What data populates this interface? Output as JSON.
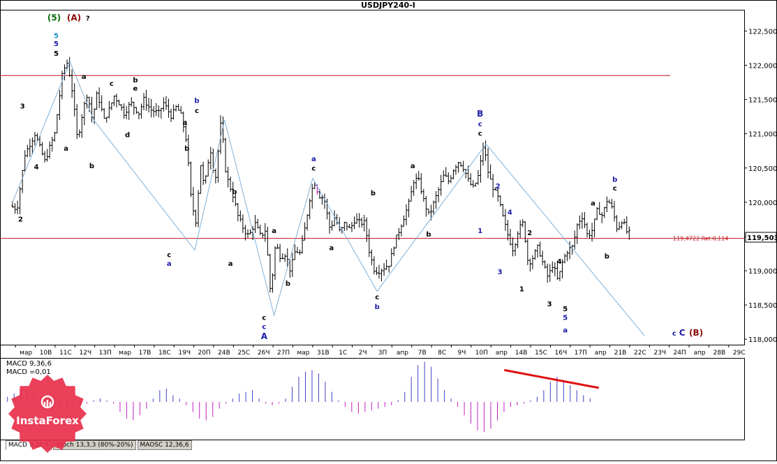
{
  "chart_data": {
    "type": "candlestick",
    "title": "USDJPY240-I",
    "price_ticks": [
      "122,500",
      "122,000",
      "121,500",
      "121,000",
      "120,500",
      "120,000",
      "119,500",
      "119,000",
      "118,500",
      "118,000"
    ],
    "price_tick_values": [
      122.5,
      122.0,
      121.5,
      121.0,
      120.5,
      120.0,
      119.5,
      119.0,
      118.5,
      118.0
    ],
    "ylim": [
      117.92,
      122.8
    ],
    "current_price": "119,503",
    "horizontal_lines": [
      {
        "price": 121.85,
        "label": ""
      },
      {
        "price": 119.4722,
        "label": "119,4722 Ret 0,114"
      }
    ],
    "time_labels": [
      "мар",
      "10В",
      "11С",
      "12Ч",
      "13П",
      "мар",
      "17В",
      "18С",
      "19Ч",
      "20П",
      "24В",
      "25С",
      "26Ч",
      "27П",
      "мар",
      "31В",
      "1С",
      "2Ч",
      "3П",
      "апр",
      "7В",
      "8С",
      "9Ч",
      "10П",
      "апр",
      "14В",
      "15С",
      "16Ч",
      "17П",
      "апр",
      "21В",
      "22С",
      "23Ч",
      "24П",
      "апр",
      "28В",
      "29С"
    ],
    "price_path": [
      [
        0,
        119.95
      ],
      [
        0.7,
        119.9
      ],
      [
        1.5,
        120.7
      ],
      [
        2.5,
        121.0
      ],
      [
        3.5,
        120.6
      ],
      [
        4.5,
        121.0
      ],
      [
        5.3,
        121.9
      ],
      [
        5.8,
        122.05
      ],
      [
        6.3,
        121.6
      ],
      [
        6.8,
        120.9
      ],
      [
        7.3,
        121.3
      ],
      [
        7.8,
        121.6
      ],
      [
        8.3,
        121.2
      ],
      [
        8.8,
        121.6
      ],
      [
        9.5,
        121.2
      ],
      [
        10,
        121.35
      ],
      [
        10.5,
        121.55
      ],
      [
        11,
        121.45
      ],
      [
        11.5,
        121.3
      ],
      [
        12.2,
        121.45
      ],
      [
        13,
        121.3
      ],
      [
        13.5,
        121.5
      ],
      [
        14.2,
        121.35
      ],
      [
        15,
        121.3
      ],
      [
        15.5,
        121.45
      ],
      [
        16.3,
        121.25
      ],
      [
        16.8,
        121.4
      ],
      [
        17.3,
        121.25
      ],
      [
        17.8,
        120.9
      ],
      [
        18.3,
        120.0
      ],
      [
        18.8,
        119.7
      ],
      [
        19.2,
        120.6
      ],
      [
        19.6,
        120.2
      ],
      [
        20.2,
        120.8
      ],
      [
        20.7,
        120.3
      ],
      [
        21.3,
        121.2
      ],
      [
        21.8,
        120.4
      ],
      [
        22.5,
        120.1
      ],
      [
        23.0,
        119.8
      ],
      [
        23.6,
        119.6
      ],
      [
        24.1,
        119.5
      ],
      [
        24.7,
        119.7
      ],
      [
        25.3,
        119.5
      ],
      [
        25.8,
        119.6
      ],
      [
        26.3,
        118.65
      ],
      [
        26.8,
        119.4
      ],
      [
        27.3,
        119.2
      ],
      [
        27.8,
        119.25
      ],
      [
        28.3,
        119.0
      ],
      [
        28.8,
        119.3
      ],
      [
        29.3,
        119.25
      ],
      [
        29.8,
        119.65
      ],
      [
        30.3,
        120.1
      ],
      [
        30.7,
        120.3
      ],
      [
        31.2,
        120.1
      ],
      [
        31.7,
        120.05
      ],
      [
        32.3,
        119.6
      ],
      [
        32.8,
        119.8
      ],
      [
        33.3,
        119.55
      ],
      [
        33.8,
        119.7
      ],
      [
        34.3,
        119.6
      ],
      [
        34.8,
        119.75
      ],
      [
        35.3,
        119.7
      ],
      [
        35.8,
        119.7
      ],
      [
        36.3,
        119.25
      ],
      [
        36.8,
        119.0
      ],
      [
        37.3,
        119.0
      ],
      [
        37.8,
        119.05
      ],
      [
        38.3,
        119.1
      ],
      [
        38.8,
        119.4
      ],
      [
        39.3,
        119.6
      ],
      [
        39.8,
        119.8
      ],
      [
        40.3,
        120.0
      ],
      [
        40.8,
        120.35
      ],
      [
        41.3,
        120.3
      ],
      [
        41.8,
        120.0
      ],
      [
        42.3,
        119.8
      ],
      [
        42.8,
        120.0
      ],
      [
        43.3,
        120.2
      ],
      [
        43.8,
        120.4
      ],
      [
        44.3,
        120.3
      ],
      [
        44.8,
        120.5
      ],
      [
        45.3,
        120.6
      ],
      [
        45.8,
        120.5
      ],
      [
        46.3,
        120.3
      ],
      [
        46.8,
        120.2
      ],
      [
        47.3,
        120.4
      ],
      [
        47.8,
        120.85
      ],
      [
        48.3,
        120.4
      ],
      [
        48.8,
        120.2
      ],
      [
        49.3,
        120.05
      ],
      [
        49.8,
        119.75
      ],
      [
        50.3,
        119.5
      ],
      [
        50.8,
        119.3
      ],
      [
        51.3,
        119.6
      ],
      [
        51.8,
        119.7
      ],
      [
        52.3,
        119.1
      ],
      [
        52.8,
        119.2
      ],
      [
        53.3,
        119.35
      ],
      [
        53.8,
        119.1
      ],
      [
        54.3,
        118.9
      ],
      [
        54.8,
        119.1
      ],
      [
        55.3,
        118.85
      ],
      [
        55.8,
        119.15
      ],
      [
        56.3,
        119.3
      ],
      [
        56.8,
        119.35
      ],
      [
        57.3,
        119.7
      ],
      [
        57.8,
        119.8
      ],
      [
        58.3,
        119.5
      ],
      [
        58.8,
        119.6
      ],
      [
        59.3,
        119.9
      ],
      [
        59.8,
        119.8
      ],
      [
        60.3,
        120.05
      ],
      [
        60.8,
        119.9
      ],
      [
        61.3,
        119.6
      ],
      [
        61.8,
        119.75
      ],
      [
        62.3,
        119.55
      ]
    ],
    "wave_path": [
      [
        0,
        120.0
      ],
      [
        5.8,
        122.05
      ],
      [
        8.2,
        121.2
      ],
      [
        18.4,
        119.3
      ],
      [
        21.4,
        121.2
      ],
      [
        26.4,
        118.35
      ],
      [
        30.3,
        120.35
      ],
      [
        36.8,
        118.7
      ],
      [
        47.8,
        120.85
      ],
      [
        63.8,
        118.05
      ]
    ],
    "wave_labels": [
      {
        "x": 2.1,
        "price": 122.65,
        "text": "(5)",
        "color": "#0a6f0a"
      },
      {
        "x": 3.1,
        "price": 122.65,
        "text": "(A)",
        "color": "#8b0a0a"
      },
      {
        "x": 3.8,
        "price": 122.65,
        "text": "?",
        "color": "#000000"
      },
      {
        "x": 2.2,
        "price": 122.4,
        "text": "5",
        "color": "#1e90c8"
      },
      {
        "x": 2.2,
        "price": 122.28,
        "text": "5",
        "color": "#1a1aa8"
      },
      {
        "x": 2.2,
        "price": 122.14,
        "text": "5",
        "color": "#000000"
      },
      {
        "x": 0.5,
        "price": 121.37,
        "text": "3",
        "color": "#000000"
      },
      {
        "x": 1.2,
        "price": 120.48,
        "text": "4",
        "color": "#000000"
      },
      {
        "x": 0.4,
        "price": 119.72,
        "text": "2",
        "color": "#000000"
      },
      {
        "x": 3.6,
        "price": 121.8,
        "text": "a",
        "color": "#000000"
      },
      {
        "x": 2.7,
        "price": 120.75,
        "text": "a",
        "color": "#000000"
      },
      {
        "x": 4.0,
        "price": 120.5,
        "text": "b",
        "color": "#000000"
      },
      {
        "x": 5.0,
        "price": 121.7,
        "text": "c",
        "color": "#000000"
      },
      {
        "x": 6.2,
        "price": 121.75,
        "text": "b",
        "color": "#000000"
      },
      {
        "x": 6.2,
        "price": 121.63,
        "text": "e",
        "color": "#000000"
      },
      {
        "x": 5.8,
        "price": 120.95,
        "text": "d",
        "color": "#000000"
      },
      {
        "x": 9.3,
        "price": 121.45,
        "text": "b",
        "color": "#1a1aa8"
      },
      {
        "x": 9.3,
        "price": 121.3,
        "text": "c",
        "color": "#000000"
      },
      {
        "x": 8.7,
        "price": 121.13,
        "text": "a",
        "color": "#000000"
      },
      {
        "x": 8.8,
        "price": 120.75,
        "text": "b",
        "color": "#000000"
      },
      {
        "x": 7.9,
        "price": 119.2,
        "text": "c",
        "color": "#000000"
      },
      {
        "x": 7.9,
        "price": 119.07,
        "text": "a",
        "color": "#1a1aa8"
      },
      {
        "x": 11.2,
        "price": 120.12,
        "text": "b",
        "color": "#000000"
      },
      {
        "x": 11.0,
        "price": 119.07,
        "text": "a",
        "color": "#000000"
      },
      {
        "x": 12.7,
        "price": 118.28,
        "text": "c",
        "color": "#000000"
      },
      {
        "x": 12.7,
        "price": 118.15,
        "text": "c",
        "color": "#1a1aa8"
      },
      {
        "x": 12.7,
        "price": 118.0,
        "text": "A",
        "color": "#1a1aa8"
      },
      {
        "x": 13.2,
        "price": 119.55,
        "text": "a",
        "color": "#000000"
      },
      {
        "x": 13.9,
        "price": 118.78,
        "text": "b",
        "color": "#000000"
      },
      {
        "x": 15.2,
        "price": 120.6,
        "text": "a",
        "color": "#1a1aa8"
      },
      {
        "x": 15.2,
        "price": 120.46,
        "text": "c",
        "color": "#000000"
      },
      {
        "x": 16.1,
        "price": 119.3,
        "text": "a",
        "color": "#000000"
      },
      {
        "x": 18.2,
        "price": 120.1,
        "text": "b",
        "color": "#000000"
      },
      {
        "x": 18.4,
        "price": 118.58,
        "text": "c",
        "color": "#000000"
      },
      {
        "x": 18.4,
        "price": 118.44,
        "text": "b",
        "color": "#1a1aa8"
      },
      {
        "x": 20.2,
        "price": 120.5,
        "text": "a",
        "color": "#000000"
      },
      {
        "x": 21.0,
        "price": 119.5,
        "text": "b",
        "color": "#000000"
      },
      {
        "x": 23.6,
        "price": 121.25,
        "text": "B",
        "color": "#1a1aa8"
      },
      {
        "x": 23.6,
        "price": 121.11,
        "text": "c",
        "color": "#1a1aa8"
      },
      {
        "x": 23.6,
        "price": 120.97,
        "text": "c",
        "color": "#000000"
      },
      {
        "x": 24.5,
        "price": 120.2,
        "text": "2",
        "color": "#1a1aa8"
      },
      {
        "x": 23.6,
        "price": 119.55,
        "text": "1",
        "color": "#1a1aa8"
      },
      {
        "x": 25.1,
        "price": 119.82,
        "text": "4",
        "color": "#1a1aa8"
      },
      {
        "x": 24.6,
        "price": 118.95,
        "text": "3",
        "color": "#1a1aa8"
      },
      {
        "x": 26.1,
        "price": 119.52,
        "text": "2",
        "color": "#000000"
      },
      {
        "x": 25.7,
        "price": 118.7,
        "text": "1",
        "color": "#000000"
      },
      {
        "x": 27.6,
        "price": 119.1,
        "text": "4",
        "color": "#000000"
      },
      {
        "x": 27.1,
        "price": 118.48,
        "text": "3",
        "color": "#000000"
      },
      {
        "x": 27.9,
        "price": 118.41,
        "text": "5",
        "color": "#000000"
      },
      {
        "x": 27.9,
        "price": 118.28,
        "text": "5",
        "color": "#1a1aa8"
      },
      {
        "x": 27.9,
        "price": 118.1,
        "text": "a",
        "color": "#1a1aa8"
      },
      {
        "x": 29.3,
        "price": 119.95,
        "text": "a",
        "color": "#000000"
      },
      {
        "x": 30.4,
        "price": 120.3,
        "text": "b",
        "color": "#1a1aa8"
      },
      {
        "x": 30.4,
        "price": 120.17,
        "text": "c",
        "color": "#000000"
      },
      {
        "x": 30.0,
        "price": 119.18,
        "text": "b",
        "color": "#000000"
      },
      {
        "x": 33.4,
        "price": 118.05,
        "text": "c",
        "color": "#1a1aa8"
      },
      {
        "x": 33.8,
        "price": 118.05,
        "text": "C",
        "color": "#1a1aa8"
      },
      {
        "x": 34.5,
        "price": 118.05,
        "text": "(B)",
        "color": "#8b0a0a"
      }
    ],
    "indicator": {
      "name": "MACD",
      "label_1": "MACD 9,36,6",
      "label_2": "MACD =0,01",
      "histogram": [
        0.15,
        0.25,
        0.35,
        0.3,
        0.2,
        0.1,
        -0.05,
        -0.1,
        -0.15,
        -0.2,
        -0.15,
        -0.1,
        -0.05,
        0.05,
        0.1,
        0.05,
        -0.05,
        -0.3,
        -0.5,
        -0.55,
        -0.4,
        -0.2,
        0.1,
        0.35,
        0.4,
        0.2,
        0.1,
        -0.1,
        -0.3,
        -0.5,
        -0.55,
        -0.45,
        -0.2,
        -0.05,
        0.1,
        0.25,
        0.3,
        0.35,
        0.1,
        -0.05,
        -0.1,
        -0.05,
        0.1,
        0.45,
        0.75,
        0.9,
        0.95,
        0.85,
        0.6,
        0.3,
        0.05,
        -0.15,
        -0.3,
        -0.35,
        -0.3,
        -0.25,
        -0.2,
        -0.15,
        -0.1,
        0.05,
        0.3,
        0.75,
        1.1,
        1.2,
        1.05,
        0.7,
        0.35,
        0.1,
        -0.15,
        -0.4,
        -0.65,
        -0.85,
        -0.9,
        -0.8,
        -0.55,
        -0.3,
        -0.15,
        -0.1,
        -0.05,
        0.05,
        0.15,
        0.35,
        0.6,
        0.75,
        0.65,
        0.5,
        0.35,
        0.2,
        0.1
      ],
      "trend_line": [
        [
          0.82,
          0.95
        ],
        [
          0.975,
          0.42
        ]
      ],
      "trend_color": "#e01010"
    }
  },
  "tabs": [
    "MACD 9,36,6",
    "Stoch 13,3,3 (80%-20%)",
    "MAOSC 12,36,6"
  ],
  "logo": {
    "text": "InstaForex"
  }
}
